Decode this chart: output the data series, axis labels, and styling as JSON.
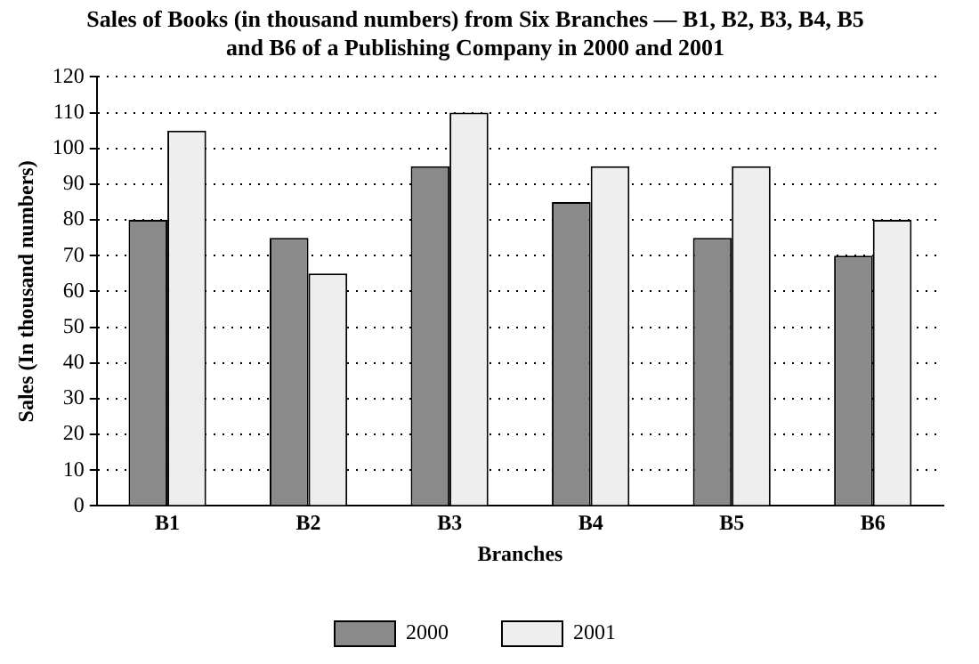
{
  "chart_data": {
    "type": "bar",
    "title": "Sales of Books (in thousand numbers) from Six Branches — B1, B2, B3, B4, B5 and B6 of a Publishing Company in 2000 and 2001",
    "xlabel": "Branches",
    "ylabel": "Sales (In thousand numbers)",
    "categories": [
      "B1",
      "B2",
      "B3",
      "B4",
      "B5",
      "B6"
    ],
    "series": [
      {
        "name": "2000",
        "color": "#8a8a8a",
        "values": [
          80,
          75,
          95,
          85,
          75,
          70
        ]
      },
      {
        "name": "2001",
        "color": "#eeeeee",
        "values": [
          105,
          65,
          110,
          95,
          95,
          80
        ]
      }
    ],
    "ylim": [
      0,
      120
    ],
    "yticks": [
      0,
      10,
      20,
      30,
      40,
      50,
      60,
      70,
      80,
      90,
      100,
      110,
      120
    ],
    "grid": "y",
    "legend": "bottom"
  }
}
